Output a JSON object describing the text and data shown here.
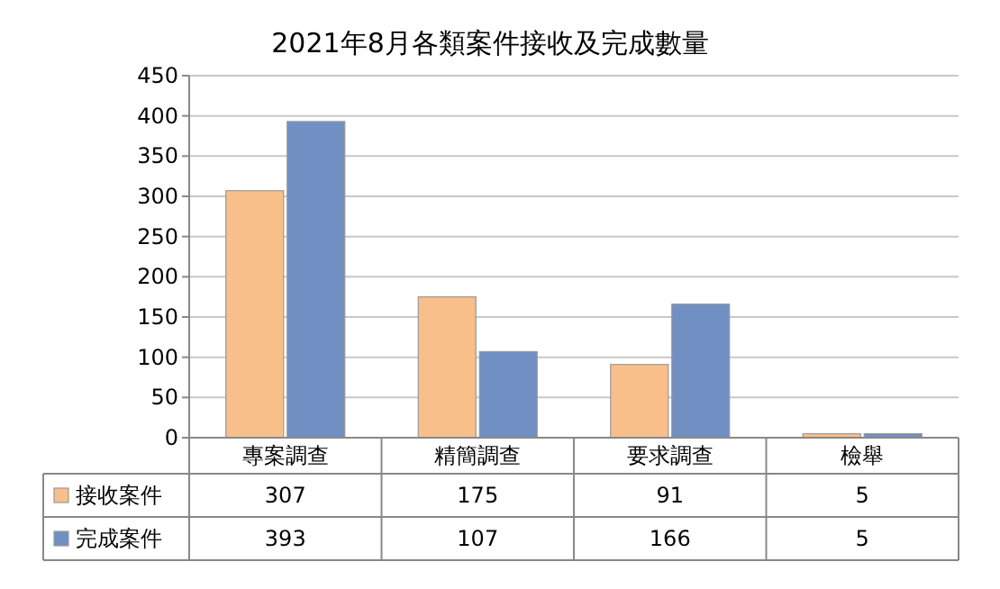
{
  "chart_data": {
    "type": "bar",
    "title": "2021年8月各類案件接收及完成數量",
    "categories": [
      "專案調查",
      "精簡調查",
      "要求調查",
      "檢舉"
    ],
    "series": [
      {
        "name": "接收案件",
        "color": "#f8bf8a",
        "values": [
          307,
          175,
          91,
          5
        ]
      },
      {
        "name": "完成案件",
        "color": "#7090c4",
        "values": [
          393,
          107,
          166,
          5
        ]
      }
    ],
    "ylim": [
      0,
      450
    ],
    "yticks": [
      0,
      50,
      100,
      150,
      200,
      250,
      300,
      350,
      400,
      450
    ],
    "grid": "y",
    "legend": "bottom left",
    "data_labels": true
  }
}
